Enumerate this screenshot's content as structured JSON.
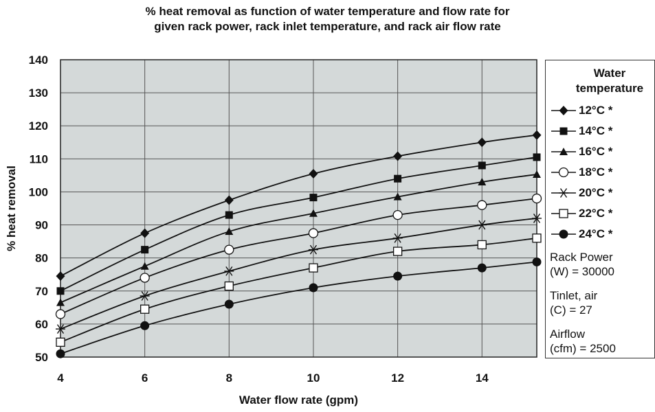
{
  "title_lines": [
    "% heat removal as function of water temperature and flow rate for",
    "given rack power, rack inlet temperature, and rack air flow rate"
  ],
  "legend": {
    "title_lines": [
      "Water",
      "temperature"
    ]
  },
  "params": [
    {
      "line1": "Rack Power",
      "line2": "(W) = 30000"
    },
    {
      "line1": "Tinlet, air",
      "line2": "(C) = 27"
    },
    {
      "line1": "Airflow",
      "line2": "(cfm) = 2500"
    }
  ],
  "chart_data": {
    "type": "line",
    "title": "% heat removal as function of water temperature and flow rate for given rack power, rack inlet temperature, and rack air flow rate",
    "xlabel": "Water flow rate (gpm)",
    "ylabel": "% heat removal",
    "xlim": [
      4,
      15.3
    ],
    "ylim": [
      50,
      140
    ],
    "xticks": [
      4,
      6,
      8,
      10,
      12,
      14
    ],
    "yticks": [
      50,
      60,
      70,
      80,
      90,
      100,
      110,
      120,
      130,
      140
    ],
    "grid": true,
    "plot_background": "#d4d9d9",
    "legend_position": "right, outside",
    "x": [
      4,
      6,
      8,
      10,
      12,
      14,
      15.3
    ],
    "series": [
      {
        "name": "12°C *",
        "marker": "diamond",
        "values": [
          74.5,
          87.5,
          97.5,
          105.5,
          110.8,
          115,
          117.2
        ]
      },
      {
        "name": "14°C *",
        "marker": "square-filled",
        "values": [
          70,
          82.5,
          93,
          98.3,
          104,
          108,
          110.5
        ]
      },
      {
        "name": "16°C *",
        "marker": "triangle",
        "values": [
          66.5,
          77.5,
          88,
          93.5,
          98.5,
          103,
          105.3
        ]
      },
      {
        "name": "18°C *",
        "marker": "circle-open",
        "values": [
          63,
          74,
          82.5,
          87.5,
          93,
          96,
          98
        ]
      },
      {
        "name": "20°C *",
        "marker": "asterisk",
        "values": [
          58.5,
          68.5,
          76,
          82.5,
          86,
          90,
          92
        ]
      },
      {
        "name": "22°C *",
        "marker": "square-open",
        "values": [
          54.5,
          64.5,
          71.5,
          77,
          82,
          84,
          86
        ]
      },
      {
        "name": "24°C *",
        "marker": "circle-filled",
        "values": [
          51,
          59.5,
          66,
          71,
          74.5,
          77,
          78.8
        ]
      }
    ]
  }
}
